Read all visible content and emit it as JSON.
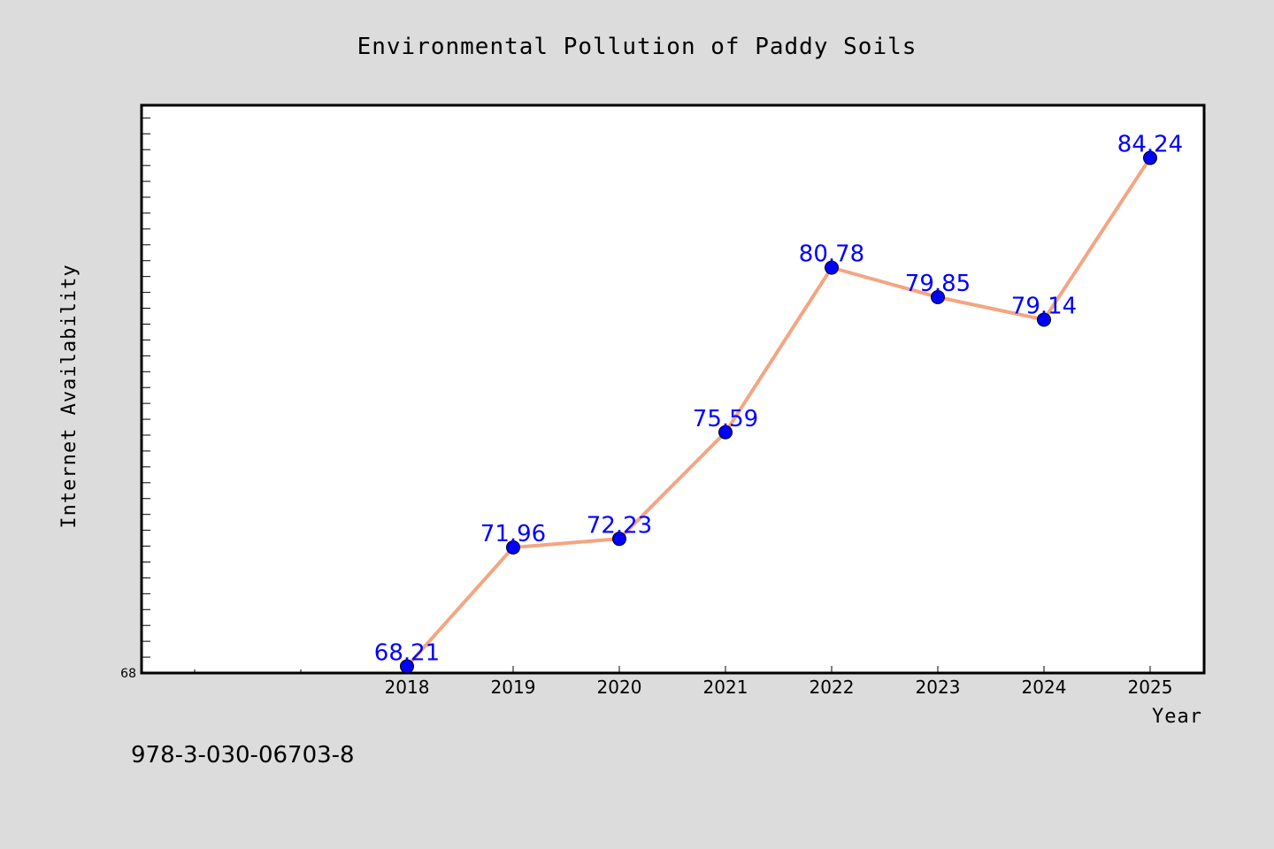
{
  "chart_data": {
    "type": "line",
    "title": "Environmental Pollution of Paddy Soils",
    "xlabel": "Year",
    "ylabel": "Internet Availability",
    "categories": [
      "2018",
      "2019",
      "2020",
      "2021",
      "2022",
      "2023",
      "2024",
      "2025"
    ],
    "series": [
      {
        "values": [
          68.21,
          71.96,
          72.23,
          75.59,
          80.78,
          79.85,
          79.14,
          84.24
        ],
        "data_labels": [
          "68.21",
          "71.96",
          "72.23",
          "75.59",
          "80.78",
          "79.85",
          "79.14",
          "84.24"
        ]
      }
    ],
    "ylim": [
      68,
      85.9
    ],
    "yticks_labeled": [
      "68"
    ],
    "grid": false,
    "legend": "none",
    "colors": {
      "line": "#f4a582",
      "marker": "#0000ff",
      "data_label": "#0000ff",
      "plot_background": "#ffffff",
      "page_background": "#dcdcdc"
    }
  },
  "footer": {
    "isbn": "978-3-030-06703-8"
  }
}
